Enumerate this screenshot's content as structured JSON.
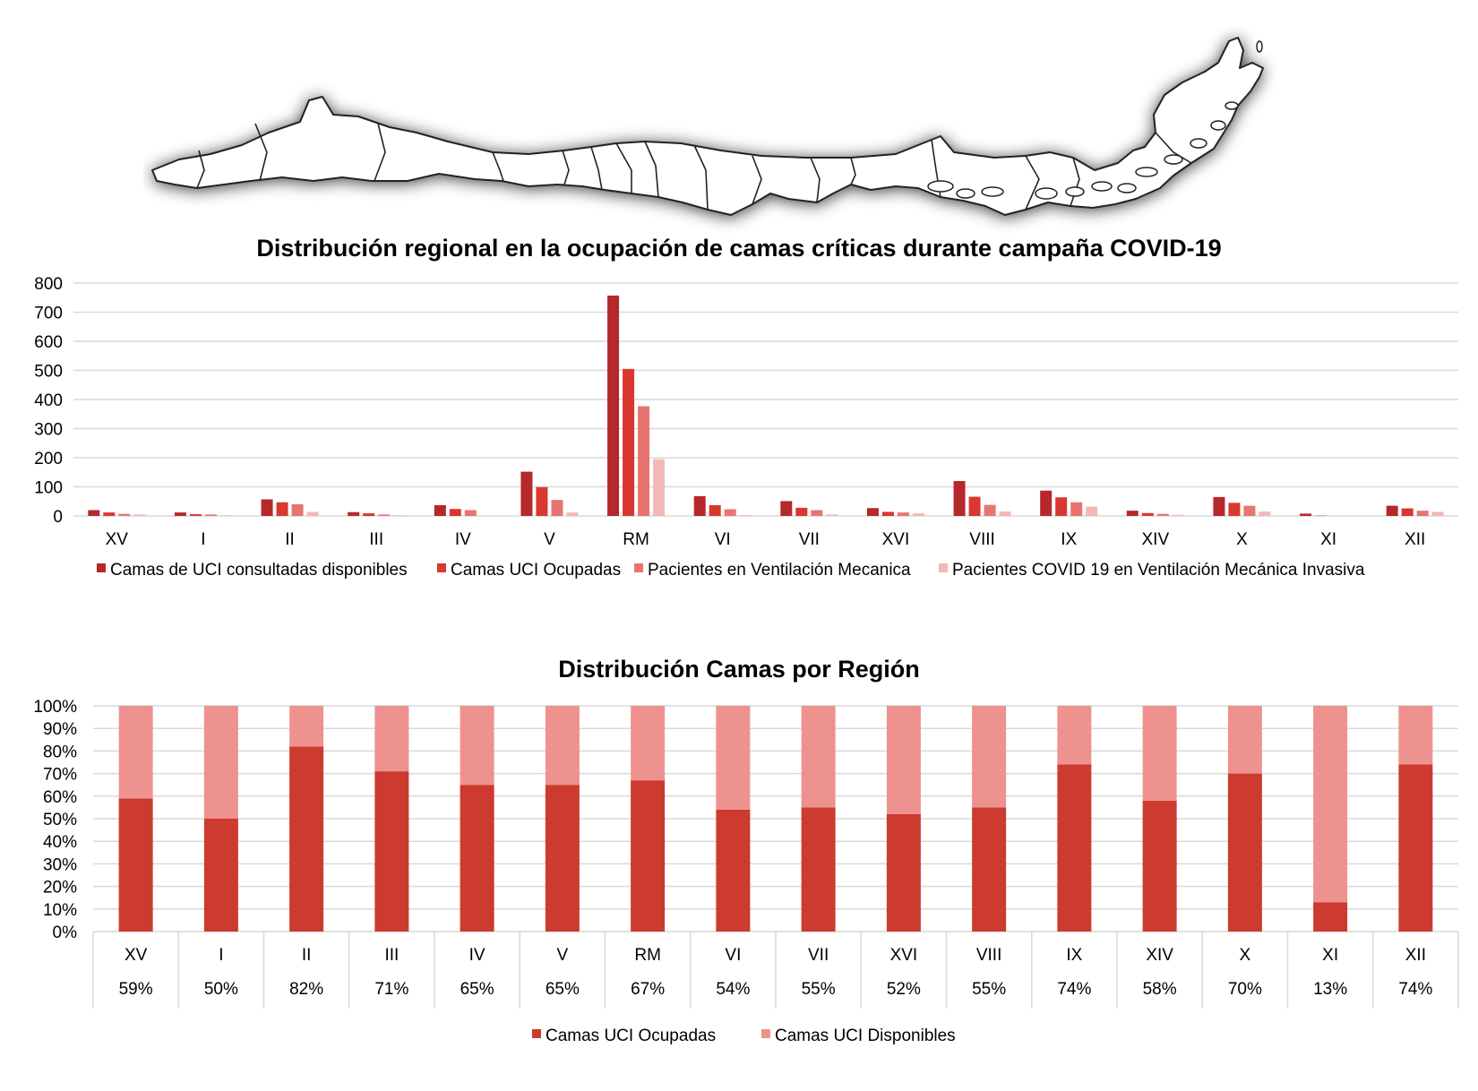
{
  "chart_data": [
    {
      "type": "bar",
      "title": "Distribución regional en la ocupación de camas críticas durante campaña COVID-19",
      "categories": [
        "XV",
        "I",
        "II",
        "III",
        "IV",
        "V",
        "RM",
        "VI",
        "VII",
        "XVI",
        "VIII",
        "IX",
        "XIV",
        "X",
        "XI",
        "XII"
      ],
      "ylim": [
        0,
        800
      ],
      "yticks": [
        "0",
        "100",
        "200",
        "300",
        "400",
        "500",
        "600",
        "700",
        "800"
      ],
      "grid": true,
      "legend_position": "bottom",
      "series": [
        {
          "name": "Camas de UCI consultadas disponibles",
          "color": "#b5282b",
          "values": [
            20,
            12,
            57,
            13,
            37,
            152,
            757,
            68,
            51,
            27,
            120,
            87,
            18,
            65,
            8,
            35
          ]
        },
        {
          "name": "Camas UCI Ocupadas",
          "color": "#d9372f",
          "values": [
            12,
            6,
            47,
            9,
            24,
            99,
            505,
            37,
            28,
            14,
            66,
            64,
            10,
            45,
            1,
            26
          ]
        },
        {
          "name": "Pacientes en Ventilación Mecanica",
          "color": "#e87470",
          "values": [
            7,
            5,
            40,
            5,
            20,
            55,
            377,
            23,
            20,
            12,
            38,
            47,
            7,
            35,
            0,
            18
          ]
        },
        {
          "name": "Pacientes COVID 19 en Ventilación Mecánica Invasiva",
          "color": "#f2b8b6",
          "values": [
            5,
            2,
            14,
            2,
            0,
            12,
            195,
            3,
            5,
            9,
            15,
            32,
            4,
            15,
            0,
            14
          ]
        }
      ]
    },
    {
      "type": "bar",
      "stacked": "percent",
      "title": "Distribución Camas por Región",
      "categories": [
        "XV",
        "I",
        "II",
        "III",
        "IV",
        "V",
        "RM",
        "VI",
        "VII",
        "XVI",
        "VIII",
        "IX",
        "XIV",
        "X",
        "XI",
        "XII"
      ],
      "ylim": [
        0,
        100
      ],
      "yticks": [
        "0%",
        "10%",
        "20%",
        "30%",
        "40%",
        "50%",
        "60%",
        "70%",
        "80%",
        "90%",
        "100%"
      ],
      "grid": true,
      "legend_position": "bottom",
      "series": [
        {
          "name": "Camas UCI Ocupadas",
          "color": "#cc3a30",
          "values": [
            59,
            50,
            82,
            71,
            65,
            65,
            67,
            54,
            55,
            52,
            55,
            74,
            58,
            70,
            13,
            74
          ]
        },
        {
          "name": "Camas UCI Disponibles",
          "color": "#ee928f",
          "values": [
            41,
            50,
            18,
            29,
            35,
            35,
            33,
            46,
            45,
            48,
            45,
            26,
            42,
            30,
            87,
            26
          ]
        }
      ],
      "table_row": [
        "59%",
        "50%",
        "82%",
        "71%",
        "65%",
        "65%",
        "67%",
        "54%",
        "55%",
        "52%",
        "55%",
        "74%",
        "58%",
        "70%",
        "13%",
        "74%"
      ]
    }
  ]
}
